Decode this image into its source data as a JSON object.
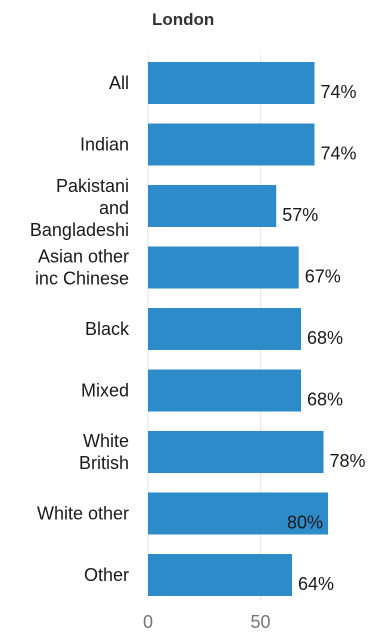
{
  "chart_data": {
    "type": "bar",
    "orientation": "horizontal",
    "title": "London",
    "categories": [
      [
        "All"
      ],
      [
        "Indian"
      ],
      [
        "Pakistani",
        "and",
        "Bangladeshi"
      ],
      [
        "Asian other",
        "inc Chinese"
      ],
      [
        "Black"
      ],
      [
        "Mixed"
      ],
      [
        "White",
        "British"
      ],
      [
        "White other"
      ],
      [
        "Other"
      ]
    ],
    "values": [
      74,
      74,
      57,
      67,
      68,
      68,
      78,
      80,
      64
    ],
    "value_labels": [
      "74%",
      "74%",
      "57%",
      "67%",
      "68%",
      "68%",
      "78%",
      "80%",
      "64%"
    ],
    "xticks": [
      0,
      50
    ],
    "xtick_labels": [
      "0",
      "50"
    ],
    "xlim": [
      0,
      100
    ],
    "grid": true,
    "colors": {
      "bar": "#2e8bc9",
      "grid": "#e6e6e6"
    }
  }
}
